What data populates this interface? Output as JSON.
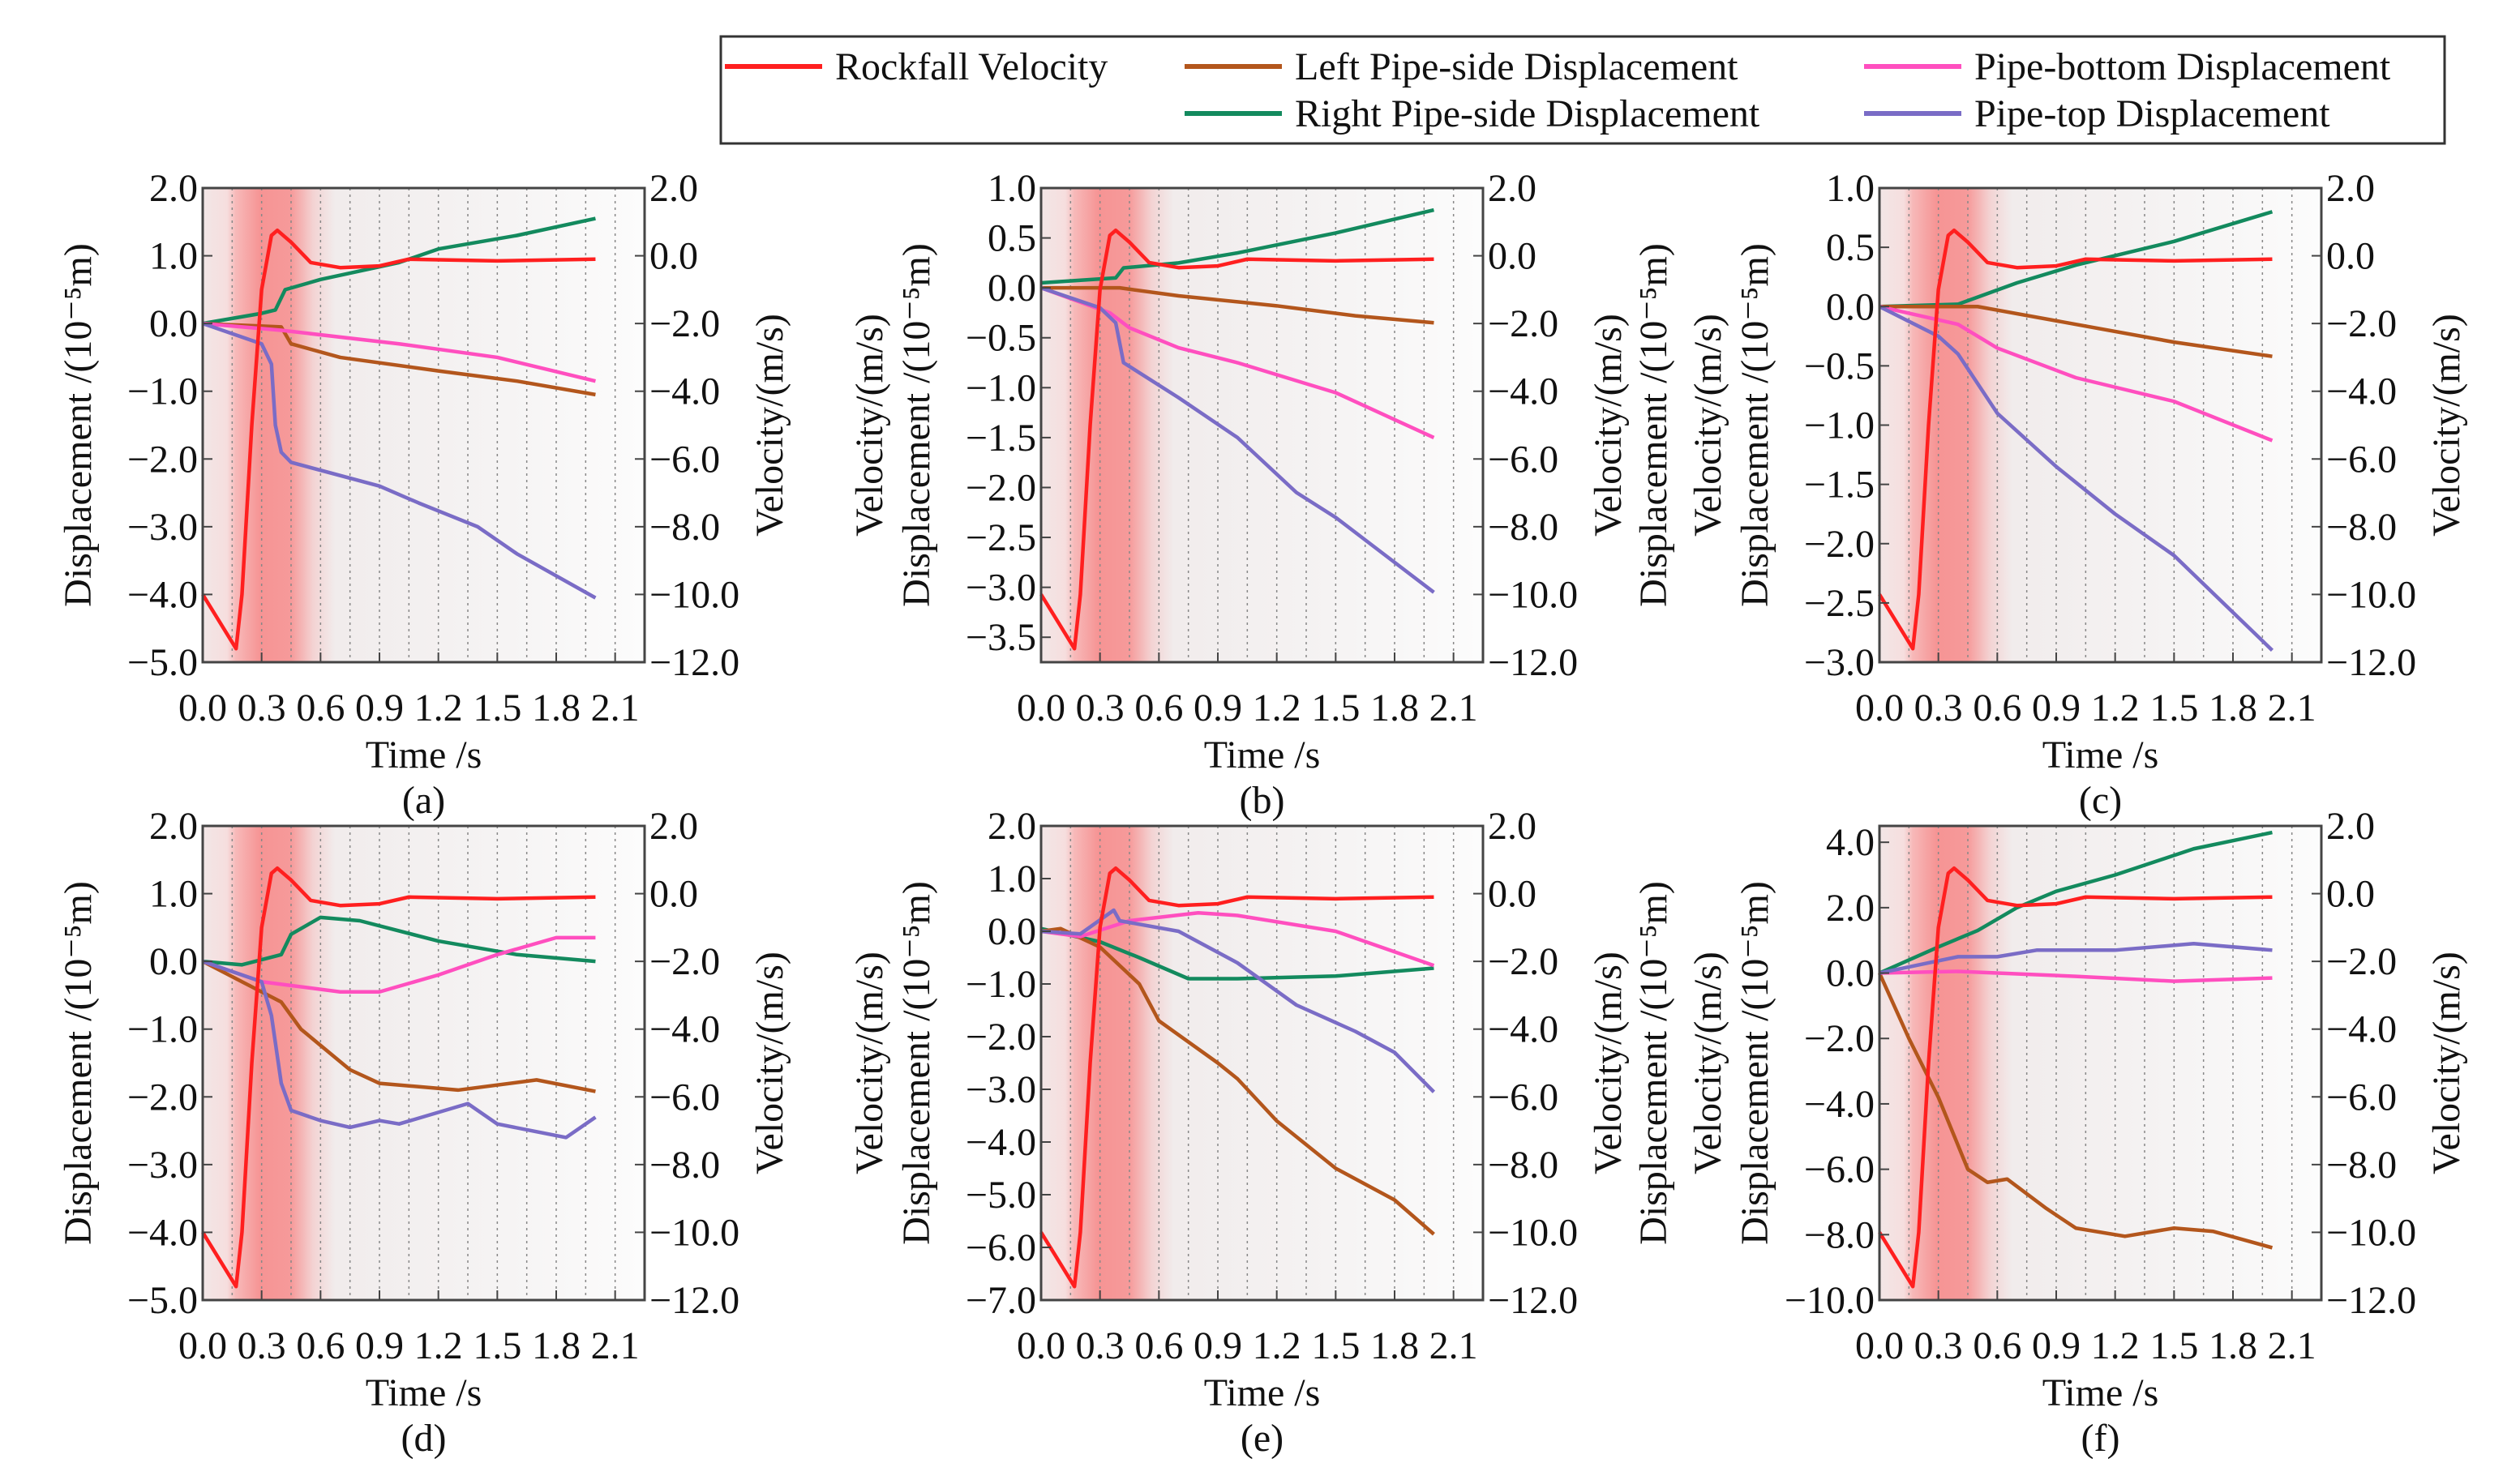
{
  "legend": {
    "items": [
      {
        "label": "Rockfall Velocity",
        "color": "#ff1f1f"
      },
      {
        "label": "Left Pipe-side Displacement",
        "color": "#b3561c"
      },
      {
        "label": "Pipe-bottom Displacement",
        "color": "#ff4fbf"
      },
      {
        "label": "Right Pipe-side Displacement",
        "color": "#138a5e"
      },
      {
        "label": "Pipe-top Displacement",
        "color": "#7a6cc6"
      }
    ]
  },
  "common": {
    "xlabel": "Time /s",
    "ylabel_displacement": "Displacement /(10⁻⁵m)",
    "ylabel_velocity": "Velocity/(m/s)",
    "xticks": [
      "0.0",
      "0.3",
      "0.6",
      "0.9",
      "1.2",
      "1.5",
      "1.8",
      "2.1"
    ],
    "xtick_values": [
      0,
      0.3,
      0.6,
      0.9,
      1.2,
      1.5,
      1.8,
      2.1
    ],
    "xlim": [
      0,
      2.25
    ],
    "right_ticks": [
      "2.0",
      "0.0",
      "−2.0",
      "−4.0",
      "−6.0",
      "−8.0",
      "−10.0",
      "−12.0"
    ],
    "right_tick_values": [
      2,
      0,
      -2,
      -4,
      -6,
      -8,
      -10,
      -12
    ],
    "right_ylim": [
      -12,
      2
    ],
    "velocity": {
      "x": [
        0,
        0.17,
        0.2,
        0.25,
        0.3,
        0.35,
        0.38,
        0.45,
        0.55,
        0.7,
        0.9,
        1.05,
        1.5,
        2.0
      ],
      "y": [
        -10,
        -11.6,
        -10,
        -5,
        -1,
        0.6,
        0.75,
        0.4,
        -0.2,
        -0.35,
        -0.3,
        -0.1,
        -0.15,
        -0.1
      ]
    }
  },
  "chart_data": [
    {
      "type": "line",
      "label": "(a)",
      "ylim": [
        -5,
        2
      ],
      "left_ticks": [
        "2.0",
        "1.0",
        "0.0",
        "−1.0",
        "−2.0",
        "−3.0",
        "−4.0",
        "−5.0"
      ],
      "left_tick_values": [
        2,
        1,
        0,
        -1,
        -2,
        -3,
        -4,
        -5
      ],
      "extra_left_velocity_label": false,
      "extra_right_disp_label": false,
      "velocity_offset": 0,
      "series": [
        {
          "name": "Right Pipe-side Displacement",
          "x": [
            0,
            0.3,
            0.37,
            0.42,
            0.6,
            1.0,
            1.2,
            1.6,
            2.0
          ],
          "y": [
            0,
            0.15,
            0.2,
            0.5,
            0.65,
            0.9,
            1.1,
            1.3,
            1.55
          ]
        },
        {
          "name": "Left Pipe-side Displacement",
          "x": [
            0,
            0.4,
            0.45,
            0.7,
            1.2,
            1.6,
            2.0
          ],
          "y": [
            0,
            -0.05,
            -0.3,
            -0.5,
            -0.7,
            -0.85,
            -1.05
          ]
        },
        {
          "name": "Pipe-bottom Displacement",
          "x": [
            0,
            0.4,
            1.0,
            1.5,
            2.0
          ],
          "y": [
            0,
            -0.1,
            -0.3,
            -0.5,
            -0.85
          ]
        },
        {
          "name": "Pipe-top Displacement",
          "x": [
            0,
            0.1,
            0.3,
            0.35,
            0.37,
            0.4,
            0.45,
            0.9,
            1.1,
            1.4,
            1.6,
            2.0
          ],
          "y": [
            0,
            -0.1,
            -0.3,
            -0.6,
            -1.5,
            -1.9,
            -2.05,
            -2.4,
            -2.65,
            -3.0,
            -3.4,
            -4.05
          ]
        }
      ]
    },
    {
      "type": "line",
      "label": "(b)",
      "ylim": [
        -3.75,
        1
      ],
      "left_ticks": [
        "1.0",
        "0.5",
        "0.0",
        "−0.5",
        "−1.0",
        "−1.5",
        "−2.0",
        "−2.5",
        "−3.0",
        "−3.5"
      ],
      "left_tick_values": [
        1,
        0.5,
        0,
        -0.5,
        -1,
        -1.5,
        -2,
        -2.5,
        -3,
        -3.5
      ],
      "extra_left_velocity_label": true,
      "extra_right_disp_label": true,
      "series": [
        {
          "name": "Right Pipe-side Displacement",
          "x": [
            0,
            0.38,
            0.42,
            0.7,
            1.0,
            1.5,
            2.0
          ],
          "y": [
            0.05,
            0.1,
            0.2,
            0.25,
            0.35,
            0.55,
            0.78
          ]
        },
        {
          "name": "Left Pipe-side Displacement",
          "x": [
            0,
            0.4,
            0.7,
            1.2,
            1.6,
            2.0
          ],
          "y": [
            0,
            0,
            -0.08,
            -0.18,
            -0.28,
            -0.35
          ]
        },
        {
          "name": "Pipe-bottom Displacement",
          "x": [
            0,
            0.35,
            0.45,
            0.7,
            1.0,
            1.5,
            2.0
          ],
          "y": [
            0,
            -0.25,
            -0.4,
            -0.6,
            -0.75,
            -1.05,
            -1.5
          ]
        },
        {
          "name": "Pipe-top Displacement",
          "x": [
            0,
            0.3,
            0.38,
            0.42,
            0.7,
            1.0,
            1.3,
            1.5,
            1.7,
            2.0
          ],
          "y": [
            0,
            -0.2,
            -0.35,
            -0.75,
            -1.1,
            -1.5,
            -2.05,
            -2.3,
            -2.6,
            -3.05
          ]
        }
      ]
    },
    {
      "type": "line",
      "label": "(c)",
      "ylim": [
        -3,
        1
      ],
      "left_ticks": [
        "1.0",
        "0.5",
        "0.0",
        "−0.5",
        "−1.0",
        "−1.5",
        "−2.0",
        "−2.5",
        "−3.0"
      ],
      "left_tick_values": [
        1,
        0.5,
        0,
        -0.5,
        -1,
        -1.5,
        -2,
        -2.5,
        -3
      ],
      "extra_left_velocity_label": true,
      "extra_right_disp_label": false,
      "series": [
        {
          "name": "Right Pipe-side Displacement",
          "x": [
            0,
            0.4,
            0.7,
            1.0,
            1.5,
            2.0
          ],
          "y": [
            0,
            0.02,
            0.2,
            0.35,
            0.55,
            0.8
          ]
        },
        {
          "name": "Left Pipe-side Displacement",
          "x": [
            0,
            0.5,
            1.0,
            1.5,
            2.0
          ],
          "y": [
            0,
            0,
            -0.15,
            -0.3,
            -0.42
          ]
        },
        {
          "name": "Pipe-bottom Displacement",
          "x": [
            0,
            0.4,
            0.6,
            1.0,
            1.5,
            2.0
          ],
          "y": [
            0,
            -0.15,
            -0.35,
            -0.6,
            -0.8,
            -1.13
          ]
        },
        {
          "name": "Pipe-top Displacement",
          "x": [
            0,
            0.3,
            0.4,
            0.6,
            0.9,
            1.2,
            1.5,
            2.0
          ],
          "y": [
            0,
            -0.25,
            -0.4,
            -0.9,
            -1.35,
            -1.75,
            -2.1,
            -2.9
          ]
        }
      ]
    },
    {
      "type": "line",
      "label": "(d)",
      "ylim": [
        -5,
        2
      ],
      "left_ticks": [
        "2.0",
        "1.0",
        "0.0",
        "−1.0",
        "−2.0",
        "−3.0",
        "−4.0",
        "−5.0"
      ],
      "left_tick_values": [
        2,
        1,
        0,
        -1,
        -2,
        -3,
        -4,
        -5
      ],
      "extra_left_velocity_label": false,
      "extra_right_disp_label": false,
      "series": [
        {
          "name": "Right Pipe-side Displacement",
          "x": [
            0,
            0.2,
            0.4,
            0.45,
            0.6,
            0.8,
            1.2,
            1.6,
            2.0
          ],
          "y": [
            0,
            -0.05,
            0.1,
            0.4,
            0.65,
            0.6,
            0.3,
            0.1,
            0
          ]
        },
        {
          "name": "Left Pipe-side Displacement",
          "x": [
            0,
            0.2,
            0.4,
            0.5,
            0.75,
            0.9,
            1.3,
            1.7,
            2.0
          ],
          "y": [
            0,
            -0.3,
            -0.6,
            -1.0,
            -1.6,
            -1.8,
            -1.9,
            -1.75,
            -1.92
          ]
        },
        {
          "name": "Pipe-bottom Displacement",
          "x": [
            0,
            0.3,
            0.7,
            0.9,
            1.2,
            1.5,
            1.8,
            2.0
          ],
          "y": [
            0,
            -0.3,
            -0.45,
            -0.45,
            -0.2,
            0.1,
            0.35,
            0.35
          ]
        },
        {
          "name": "Pipe-top Displacement",
          "x": [
            0,
            0.3,
            0.35,
            0.4,
            0.45,
            0.6,
            0.75,
            0.9,
            1.0,
            1.35,
            1.5,
            1.85,
            2.0
          ],
          "y": [
            0,
            -0.3,
            -0.8,
            -1.8,
            -2.2,
            -2.35,
            -2.45,
            -2.35,
            -2.4,
            -2.1,
            -2.4,
            -2.6,
            -2.3
          ]
        }
      ]
    },
    {
      "type": "line",
      "label": "(e)",
      "ylim": [
        -7,
        2
      ],
      "left_ticks": [
        "2.0",
        "1.0",
        "0.0",
        "−1.0",
        "−2.0",
        "−3.0",
        "−4.0",
        "−5.0",
        "−6.0",
        "−7.0"
      ],
      "left_tick_values": [
        2,
        1,
        0,
        -1,
        -2,
        -3,
        -4,
        -5,
        -6,
        -7
      ],
      "extra_left_velocity_label": true,
      "extra_right_disp_label": true,
      "series": [
        {
          "name": "Right Pipe-side Displacement",
          "x": [
            0,
            0.3,
            0.5,
            0.75,
            1.0,
            1.5,
            2.0
          ],
          "y": [
            0.05,
            -0.2,
            -0.5,
            -0.9,
            -0.9,
            -0.85,
            -0.7
          ]
        },
        {
          "name": "Left Pipe-side Displacement",
          "x": [
            0,
            0.1,
            0.3,
            0.5,
            0.6,
            0.9,
            1.0,
            1.2,
            1.5,
            1.8,
            2.0
          ],
          "y": [
            0,
            0.05,
            -0.3,
            -1.0,
            -1.7,
            -2.5,
            -2.8,
            -3.6,
            -4.5,
            -5.1,
            -5.75
          ]
        },
        {
          "name": "Pipe-bottom Displacement",
          "x": [
            0,
            0.2,
            0.45,
            0.8,
            1.0,
            1.5,
            2.0
          ],
          "y": [
            0,
            -0.1,
            0.2,
            0.35,
            0.3,
            0,
            -0.65
          ]
        },
        {
          "name": "Pipe-top Displacement",
          "x": [
            0,
            0.2,
            0.37,
            0.4,
            0.7,
            1.0,
            1.3,
            1.6,
            1.8,
            2.0
          ],
          "y": [
            0,
            -0.05,
            0.4,
            0.2,
            0,
            -0.6,
            -1.4,
            -1.9,
            -2.3,
            -3.05
          ]
        }
      ]
    },
    {
      "type": "line",
      "label": "(f)",
      "ylim": [
        -10,
        4.5
      ],
      "left_ticks": [
        "4.0",
        "2.0",
        "0.0",
        "−2.0",
        "−4.0",
        "−6.0",
        "−8.0",
        "−10.0"
      ],
      "left_tick_values": [
        4,
        2,
        0,
        -2,
        -4,
        -6,
        -8,
        -10
      ],
      "extra_left_velocity_label": true,
      "extra_right_disp_label": false,
      "series": [
        {
          "name": "Right Pipe-side Displacement",
          "x": [
            0,
            0.3,
            0.5,
            0.7,
            0.9,
            1.2,
            1.6,
            2.0
          ],
          "y": [
            0,
            0.8,
            1.3,
            2.0,
            2.5,
            3.0,
            3.8,
            4.3
          ]
        },
        {
          "name": "Left Pipe-side Displacement",
          "x": [
            0,
            0.15,
            0.3,
            0.45,
            0.55,
            0.65,
            0.85,
            1.0,
            1.25,
            1.5,
            1.7,
            2.0
          ],
          "y": [
            0,
            -2,
            -3.8,
            -6.0,
            -6.4,
            -6.3,
            -7.2,
            -7.8,
            -8.05,
            -7.8,
            -7.9,
            -8.4
          ]
        },
        {
          "name": "Pipe-bottom Displacement",
          "x": [
            0,
            0.4,
            1.0,
            1.5,
            2.0
          ],
          "y": [
            0,
            0.05,
            -0.1,
            -0.25,
            -0.15
          ]
        },
        {
          "name": "Pipe-top Displacement",
          "x": [
            0,
            0.4,
            0.6,
            0.8,
            1.2,
            1.6,
            2.0
          ],
          "y": [
            0,
            0.5,
            0.5,
            0.7,
            0.7,
            0.9,
            0.7
          ]
        }
      ]
    }
  ]
}
